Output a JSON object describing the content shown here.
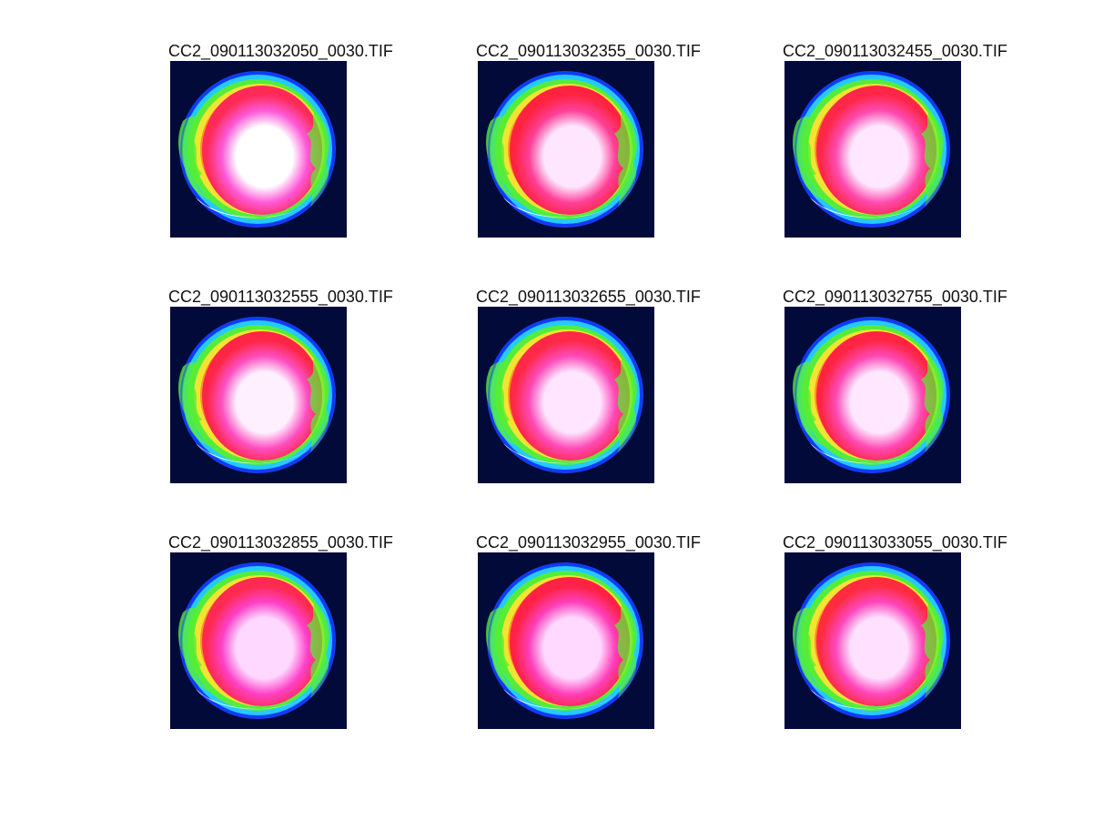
{
  "figure": {
    "panels": [
      {
        "title": "CC2_090113032050_0030.TIF",
        "core": "#ffffff",
        "mid": "#ff58d8",
        "edge": "#ff2a55"
      },
      {
        "title": "CC2_090113032355_0030.TIF",
        "core": "#ffe6ff",
        "mid": "#ff3f98",
        "edge": "#ff233f"
      },
      {
        "title": "CC2_090113032455_0030.TIF",
        "core": "#ffe8ff",
        "mid": "#ff4ab0",
        "edge": "#ff2747"
      },
      {
        "title": "CC2_090113032555_0030.TIF",
        "core": "#fff0ff",
        "mid": "#ff4ec0",
        "edge": "#ff2544"
      },
      {
        "title": "CC2_090113032655_0030.TIF",
        "core": "#ffe5ff",
        "mid": "#ff4ab8",
        "edge": "#ff2846"
      },
      {
        "title": "CC2_090113032755_0030.TIF",
        "core": "#ffe7ff",
        "mid": "#ff49b5",
        "edge": "#ff2542"
      },
      {
        "title": "CC2_090113032855_0030.TIF",
        "core": "#ffd8ff",
        "mid": "#ff40c8",
        "edge": "#ff2a50"
      },
      {
        "title": "CC2_090113032955_0030.TIF",
        "core": "#ffd9ff",
        "mid": "#ff3fba",
        "edge": "#ff2244"
      },
      {
        "title": "CC2_090113033055_0030.TIF",
        "core": "#ffe1ff",
        "mid": "#ff46bd",
        "edge": "#ff2c40"
      }
    ],
    "palette": {
      "background": "#020a3a",
      "outer_ring": "#1646ff",
      "cyan_ring": "#25d2ff",
      "green_ring": "#57ee32",
      "yellow_ring": "#ffe332",
      "orange_ring": "#ff8a1e"
    }
  }
}
